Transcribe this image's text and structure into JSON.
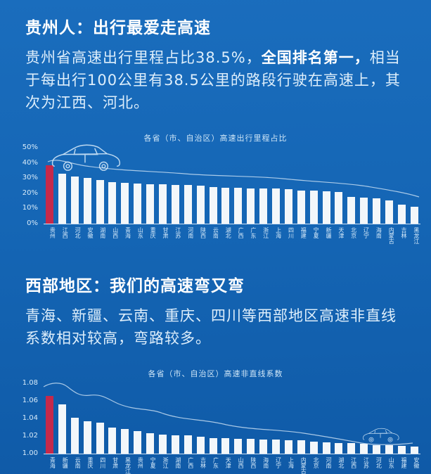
{
  "colors": {
    "background_top": "#1a6dbd",
    "background_bottom": "#0f5aa7",
    "bar": "#f3f7fa",
    "highlight_bar": "#c5294b",
    "title_text": "#ffffff",
    "body_text": "#ddeefb",
    "chart_text": "#cfe6f7"
  },
  "section1": {
    "title": "贵州人：出行最爱走高速",
    "body_prefix": "贵州省高速出行里程占比38.5%，",
    "body_bold": "全国排名第一，",
    "body_suffix": "相当于每出行100公里有38.5公里的路段行驶在高速上，其次为江西、河北。"
  },
  "section2": {
    "title": "西部地区：我们的高速弯又弯",
    "body": "青海、新疆、云南、重庆、四川等西部地区高速非直线系数相对较高，弯路较多。"
  },
  "chart_data": [
    {
      "type": "bar",
      "title": "各省（市、自治区）高速出行里程占比",
      "categories": [
        "贵州",
        "江西",
        "河北",
        "安徽",
        "湖南",
        "山西",
        "青海",
        "山东",
        "重庆",
        "甘肃",
        "江苏",
        "河南",
        "陕西",
        "云南",
        "湖北",
        "广西",
        "广东",
        "浙江",
        "上海",
        "四川",
        "福建",
        "宁夏",
        "新疆",
        "天津",
        "北京",
        "辽宁",
        "海南",
        "内蒙古",
        "吉林",
        "黑龙江"
      ],
      "values": [
        38.5,
        33,
        31,
        30,
        28.5,
        27.5,
        27,
        26.5,
        26,
        26,
        25.5,
        25.5,
        25,
        24,
        23.5,
        23.5,
        23,
        23,
        23,
        22.5,
        22,
        22,
        21.5,
        21,
        17.5,
        17,
        16.5,
        15.5,
        12.5,
        11
      ],
      "ylim": [
        0,
        50
      ],
      "yticks": [
        {
          "label": "0%",
          "value": 0
        },
        {
          "label": "10%",
          "value": 10
        },
        {
          "label": "20%",
          "value": 20
        },
        {
          "label": "30%",
          "value": 30
        },
        {
          "label": "40%",
          "value": 40
        },
        {
          "label": "50%",
          "value": 50
        }
      ],
      "highlight_index": 0,
      "highlight_category": "贵州",
      "grid": false,
      "legend": false
    },
    {
      "type": "bar",
      "title": "各省（市、自治区）高速非直线系数",
      "categories": [
        "青海",
        "新疆",
        "云南",
        "重庆",
        "四川",
        "甘肃",
        "黑龙江",
        "贵州",
        "宁夏",
        "浙江",
        "湖南",
        "广西",
        "吉林",
        "广东",
        "天津",
        "山西",
        "陕西",
        "海南",
        "辽宁",
        "上海",
        "内蒙古",
        "北京",
        "河南",
        "湖北",
        "江西",
        "江苏",
        "河北",
        "山东",
        "福建",
        "安徽"
      ],
      "values": [
        1.066,
        1.056,
        1.041,
        1.037,
        1.035,
        1.03,
        1.028,
        1.026,
        1.023,
        1.022,
        1.021,
        1.021,
        1.019,
        1.018,
        1.018,
        1.017,
        1.017,
        1.016,
        1.016,
        1.015,
        1.015,
        1.014,
        1.013,
        1.012,
        1.012,
        1.011,
        1.01,
        1.01,
        1.009,
        1.008
      ],
      "ylim": [
        1.0,
        1.08
      ],
      "yticks": [
        {
          "label": "1.00",
          "value": 1.0
        },
        {
          "label": "1.02",
          "value": 1.02
        },
        {
          "label": "1.04",
          "value": 1.04
        },
        {
          "label": "1.06",
          "value": 1.06
        },
        {
          "label": "1.08",
          "value": 1.08
        }
      ],
      "highlight_index": 0,
      "highlight_category": "青海",
      "grid": false,
      "legend": false
    }
  ]
}
